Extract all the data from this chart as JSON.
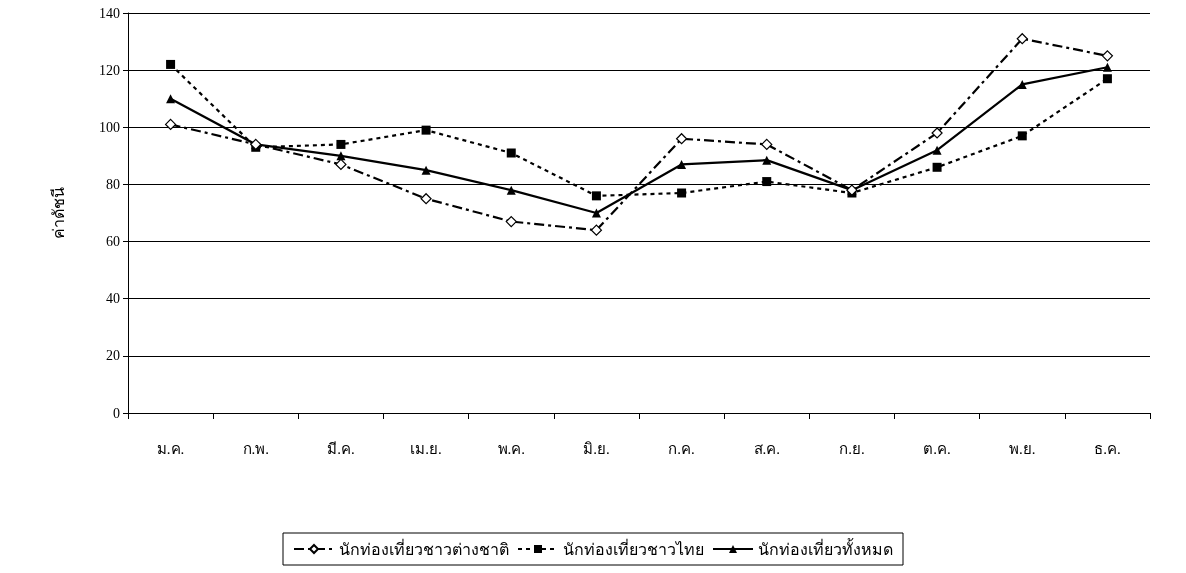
{
  "chart_data": {
    "type": "line",
    "ylabel": "ค่าดัชนี",
    "categories": [
      "ม.ค.",
      "ก.พ.",
      "มี.ค.",
      "เม.ย.",
      "พ.ค.",
      "มิ.ย.",
      "ก.ค.",
      "ส.ค.",
      "ก.ย.",
      "ต.ค.",
      "พ.ย.",
      "ธ.ค."
    ],
    "series": [
      {
        "name": "นักท่องเที่ยวชาวต่างชาติ",
        "color": "#000000",
        "marker": "diamond",
        "line_style": "dashed",
        "values": [
          101,
          94,
          87,
          75,
          67,
          64,
          96,
          94,
          78,
          98,
          131,
          125
        ]
      },
      {
        "name": "นักท่องเที่ยวชาวไทย",
        "color": "#000000",
        "marker": "square",
        "line_style": "dotted",
        "values": [
          122,
          93,
          94,
          99,
          91,
          76,
          77,
          81,
          77,
          86,
          97,
          117
        ]
      },
      {
        "name": "นักท่องเที่ยวทั้งหมด",
        "color": "#000000",
        "marker": "triangle",
        "line_style": "solid",
        "values": [
          110,
          94,
          90,
          85,
          78,
          70,
          87,
          88.5,
          78,
          92,
          115,
          121
        ]
      }
    ],
    "ylim": [
      0,
      140
    ],
    "yticks": [
      0,
      20,
      40,
      60,
      80,
      100,
      120,
      140
    ],
    "grid": "y",
    "legend": "bottom"
  }
}
